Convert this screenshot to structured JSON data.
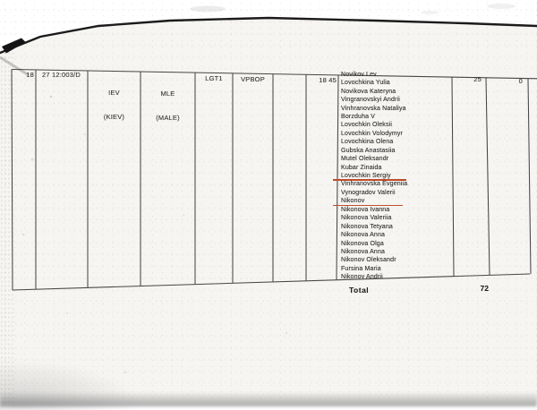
{
  "annotation": {
    "underline_color": "#bf4e2b",
    "line_color": "#2e2e2e"
  },
  "table": {
    "header": {
      "row_number": "18",
      "record_code": "27 12:003/D",
      "origin_code": "IEV",
      "origin_city": "(KIEV)",
      "dest_code": "MLE",
      "dest_city": "(MALE)",
      "flight_code": "LGT1",
      "category_code": "VPBOP",
      "time": "18 45",
      "count_a": "25",
      "count_b": "0"
    },
    "passengers": [
      {
        "text": "Novikov Lev"
      },
      {
        "text": "Lovochkina Yulia"
      },
      {
        "text": "Novikova Kateryna"
      },
      {
        "text": "Vingranovskyi Andrii"
      },
      {
        "text": "Vinhranovska Nataliya"
      },
      {
        "text": "Borzduha V"
      },
      {
        "text": "Lovochkin Oleksii"
      },
      {
        "text": "Lovochkin Volodymyr"
      },
      {
        "text": "Lovochkina Olena"
      },
      {
        "text": "Gubska Anastasiia"
      },
      {
        "text": "Mutel Oleksandr"
      },
      {
        "text": "Kubar Zinaida"
      },
      {
        "text": "Lovochkin Sergiy",
        "underlined": true,
        "underline_width": 82
      },
      {
        "text": "Vinhranovska Evgeniia"
      },
      {
        "text": "Vynogradov Valerii"
      },
      {
        "text": "Nikonov",
        "underlined": true,
        "underline_width": 78
      },
      {
        "text": "Nikonova Ivanna"
      },
      {
        "text": "Nikonova Valeriia"
      },
      {
        "text": "Nikonova Tetyana"
      },
      {
        "text": "Nikonova Anna"
      },
      {
        "text": "Nikonova Olga"
      },
      {
        "text": "Nikonova Anna"
      },
      {
        "text": "Nikonov Oleksandr"
      },
      {
        "text": "Fursina Maria"
      },
      {
        "text": "Nikonov Andrii"
      }
    ],
    "footer": {
      "total_label": "Total",
      "total_value": "72"
    }
  }
}
